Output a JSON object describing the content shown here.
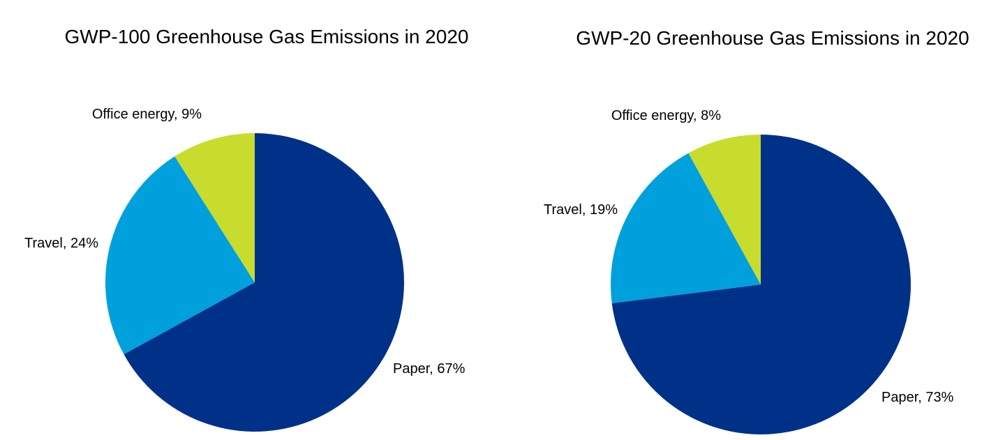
{
  "chart_data": [
    {
      "type": "pie",
      "title": "GWP-100 Greenhouse Gas Emissions in 2020",
      "slices": [
        {
          "label": "Paper, 67%",
          "category": "Paper",
          "value": 67,
          "color": "#003189"
        },
        {
          "label": "Travel, 24%",
          "category": "Travel",
          "value": 24,
          "color": "#00a0dc"
        },
        {
          "label": "Office energy, 9%",
          "category": "Office energy",
          "value": 9,
          "color": "#c8dc2d"
        }
      ]
    },
    {
      "type": "pie",
      "title": "GWP-20 Greenhouse Gas Emissions in 2020",
      "slices": [
        {
          "label": "Paper, 73%",
          "category": "Paper",
          "value": 73,
          "color": "#003189"
        },
        {
          "label": "Travel, 19%",
          "category": "Travel",
          "value": 19,
          "color": "#00a0dc"
        },
        {
          "label": "Office energy, 8%",
          "category": "Office energy",
          "value": 8,
          "color": "#c8dc2d"
        }
      ]
    }
  ]
}
